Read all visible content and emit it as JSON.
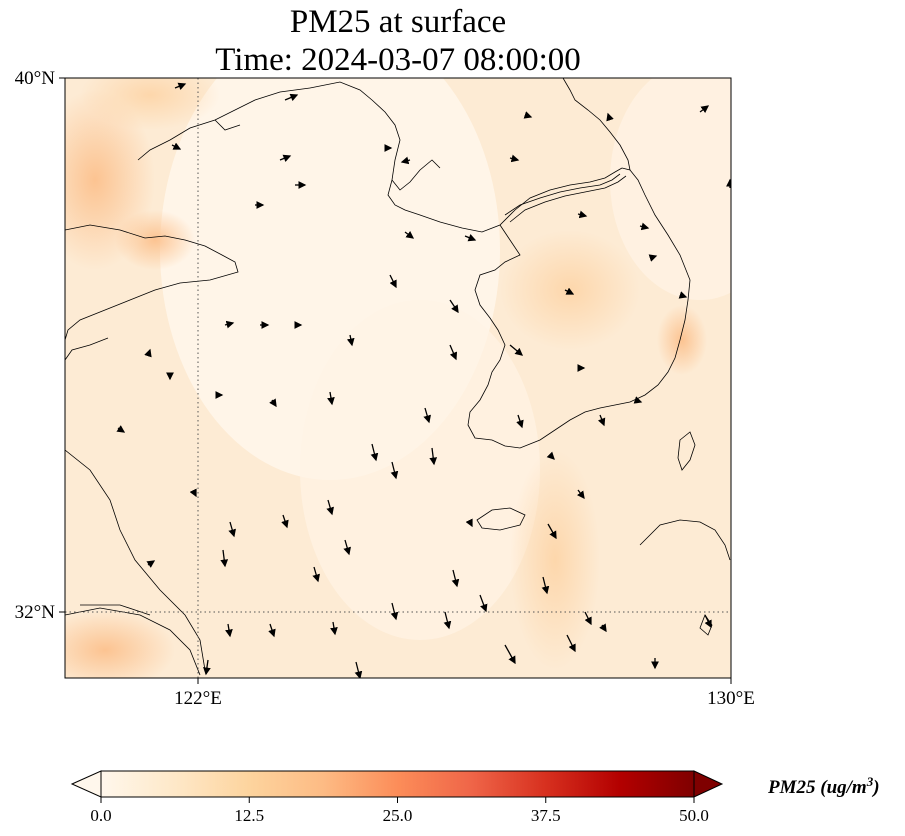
{
  "chart_data": {
    "type": "map",
    "variable": "PM25",
    "title_line1": "PM25 at surface",
    "title_line2": "Time: 2024-03-07 08:00:00",
    "lon_range": [
      120,
      130
    ],
    "lat_range": [
      31,
      40
    ],
    "x_ticks": [
      "122°E",
      "130°E"
    ],
    "x_tick_values": [
      122,
      130
    ],
    "y_ticks": [
      "40°N",
      "32°N"
    ],
    "y_tick_values": [
      40,
      32
    ],
    "gridlines": "dotted at 122°E and 32°N",
    "colorbar": {
      "label": "PM25 (ug/m",
      "label_sup": "3",
      "label_close": ")",
      "min": 0,
      "max": 50,
      "ticks": [
        "0.0",
        "12.5",
        "25.0",
        "37.5",
        "50.0"
      ],
      "tick_values": [
        0,
        12.5,
        25,
        37.5,
        50
      ],
      "colormap": "OrRd",
      "extend": "both"
    },
    "field_range_estimate": [
      1,
      14
    ],
    "wind_vectors": "arrows mostly pointing south-southeast over the Yellow Sea"
  },
  "colors": {
    "low": "#fff7ec",
    "mid": "#fdd49e",
    "high": "#7f0000",
    "coast": "#000000"
  }
}
